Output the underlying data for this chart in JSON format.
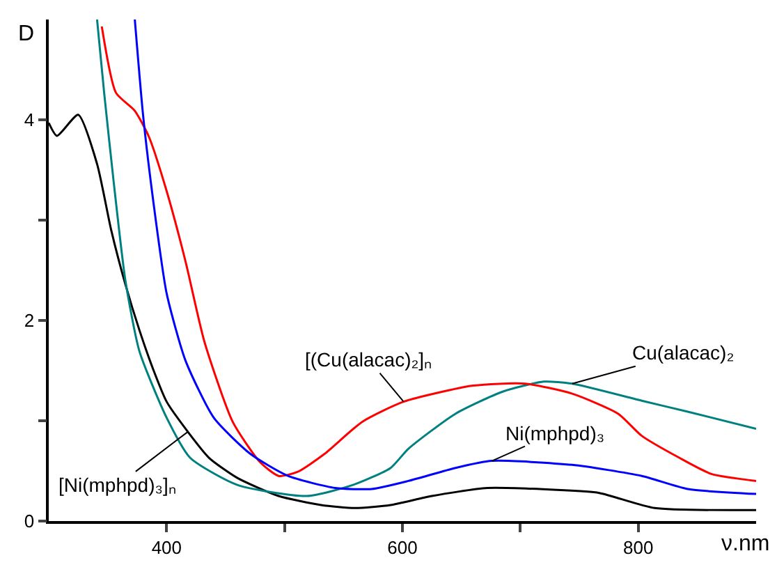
{
  "chart_data": {
    "type": "line",
    "xlabel": "ν.nm",
    "ylabel": "D",
    "xlim": [
      300,
      900
    ],
    "ylim": [
      0,
      5
    ],
    "xticks": [
      400,
      {
        "value": 500,
        "label": null
      },
      600,
      {
        "value": 700,
        "label": null
      },
      800
    ],
    "yticks": [
      0,
      {
        "value": 1,
        "label": null
      },
      2,
      {
        "value": 3,
        "label": null
      },
      4
    ],
    "marker": "none",
    "line_style": "solid",
    "series": [
      {
        "color": "#000000",
        "x": [
          300,
          307,
          325,
          341,
          353,
          365,
          377,
          389,
          400,
          418,
          436,
          460,
          495,
          531,
          560,
          590,
          625,
          672,
          731,
          767,
          814,
          900
        ],
        "values": [
          3.97,
          3.84,
          4.05,
          3.56,
          2.9,
          2.36,
          1.9,
          1.5,
          1.19,
          0.89,
          0.63,
          0.43,
          0.25,
          0.16,
          0.13,
          0.16,
          0.25,
          0.33,
          0.31,
          0.28,
          0.13,
          0.11
        ]
      },
      {
        "color": "#008080",
        "x": [
          341,
          347,
          355,
          365,
          377,
          400,
          420,
          460,
          519,
          558,
          590,
          605,
          645,
          685,
          720,
          744,
          803,
          842,
          900
        ],
        "values": [
          5.0,
          4.27,
          3.39,
          2.4,
          1.69,
          1.03,
          0.63,
          0.36,
          0.25,
          0.36,
          0.53,
          0.72,
          1.07,
          1.29,
          1.39,
          1.37,
          1.2,
          1.09,
          0.92
        ]
      },
      {
        "color": "#ff0000",
        "x": [
          345,
          357,
          373,
          385,
          400,
          416,
          432,
          456,
          479,
          495,
          511,
          534,
          566,
          601,
          660,
          704,
          744,
          783,
          803,
          835,
          862,
          900
        ],
        "values": [
          4.93,
          4.27,
          4.09,
          3.83,
          3.29,
          2.59,
          1.79,
          0.99,
          0.59,
          0.45,
          0.49,
          0.67,
          0.99,
          1.19,
          1.35,
          1.37,
          1.27,
          1.07,
          0.85,
          0.63,
          0.47,
          0.4
        ]
      },
      {
        "color": "#0000ff",
        "x": [
          373,
          380,
          389,
          400,
          416,
          440,
          471,
          503,
          543,
          574,
          605,
          645,
          676,
          744,
          803,
          842,
          900
        ],
        "values": [
          5.0,
          4.05,
          3.16,
          2.27,
          1.6,
          1.03,
          0.67,
          0.45,
          0.33,
          0.32,
          0.4,
          0.53,
          0.6,
          0.56,
          0.45,
          0.32,
          0.27
        ]
      }
    ],
    "annotations": [
      {
        "text": "[(Cu(alacac)₂]ₙ",
        "x": 601,
        "y": 1.19
      },
      {
        "text": "Cu(alacac)₂",
        "x": 744,
        "y": 1.37
      },
      {
        "text": "Ni(mphpd)₃",
        "x": 676,
        "y": 0.6
      },
      {
        "text": "[Ni(mphpd)₃]ₙ",
        "x": 418,
        "y": 0.89
      }
    ]
  }
}
